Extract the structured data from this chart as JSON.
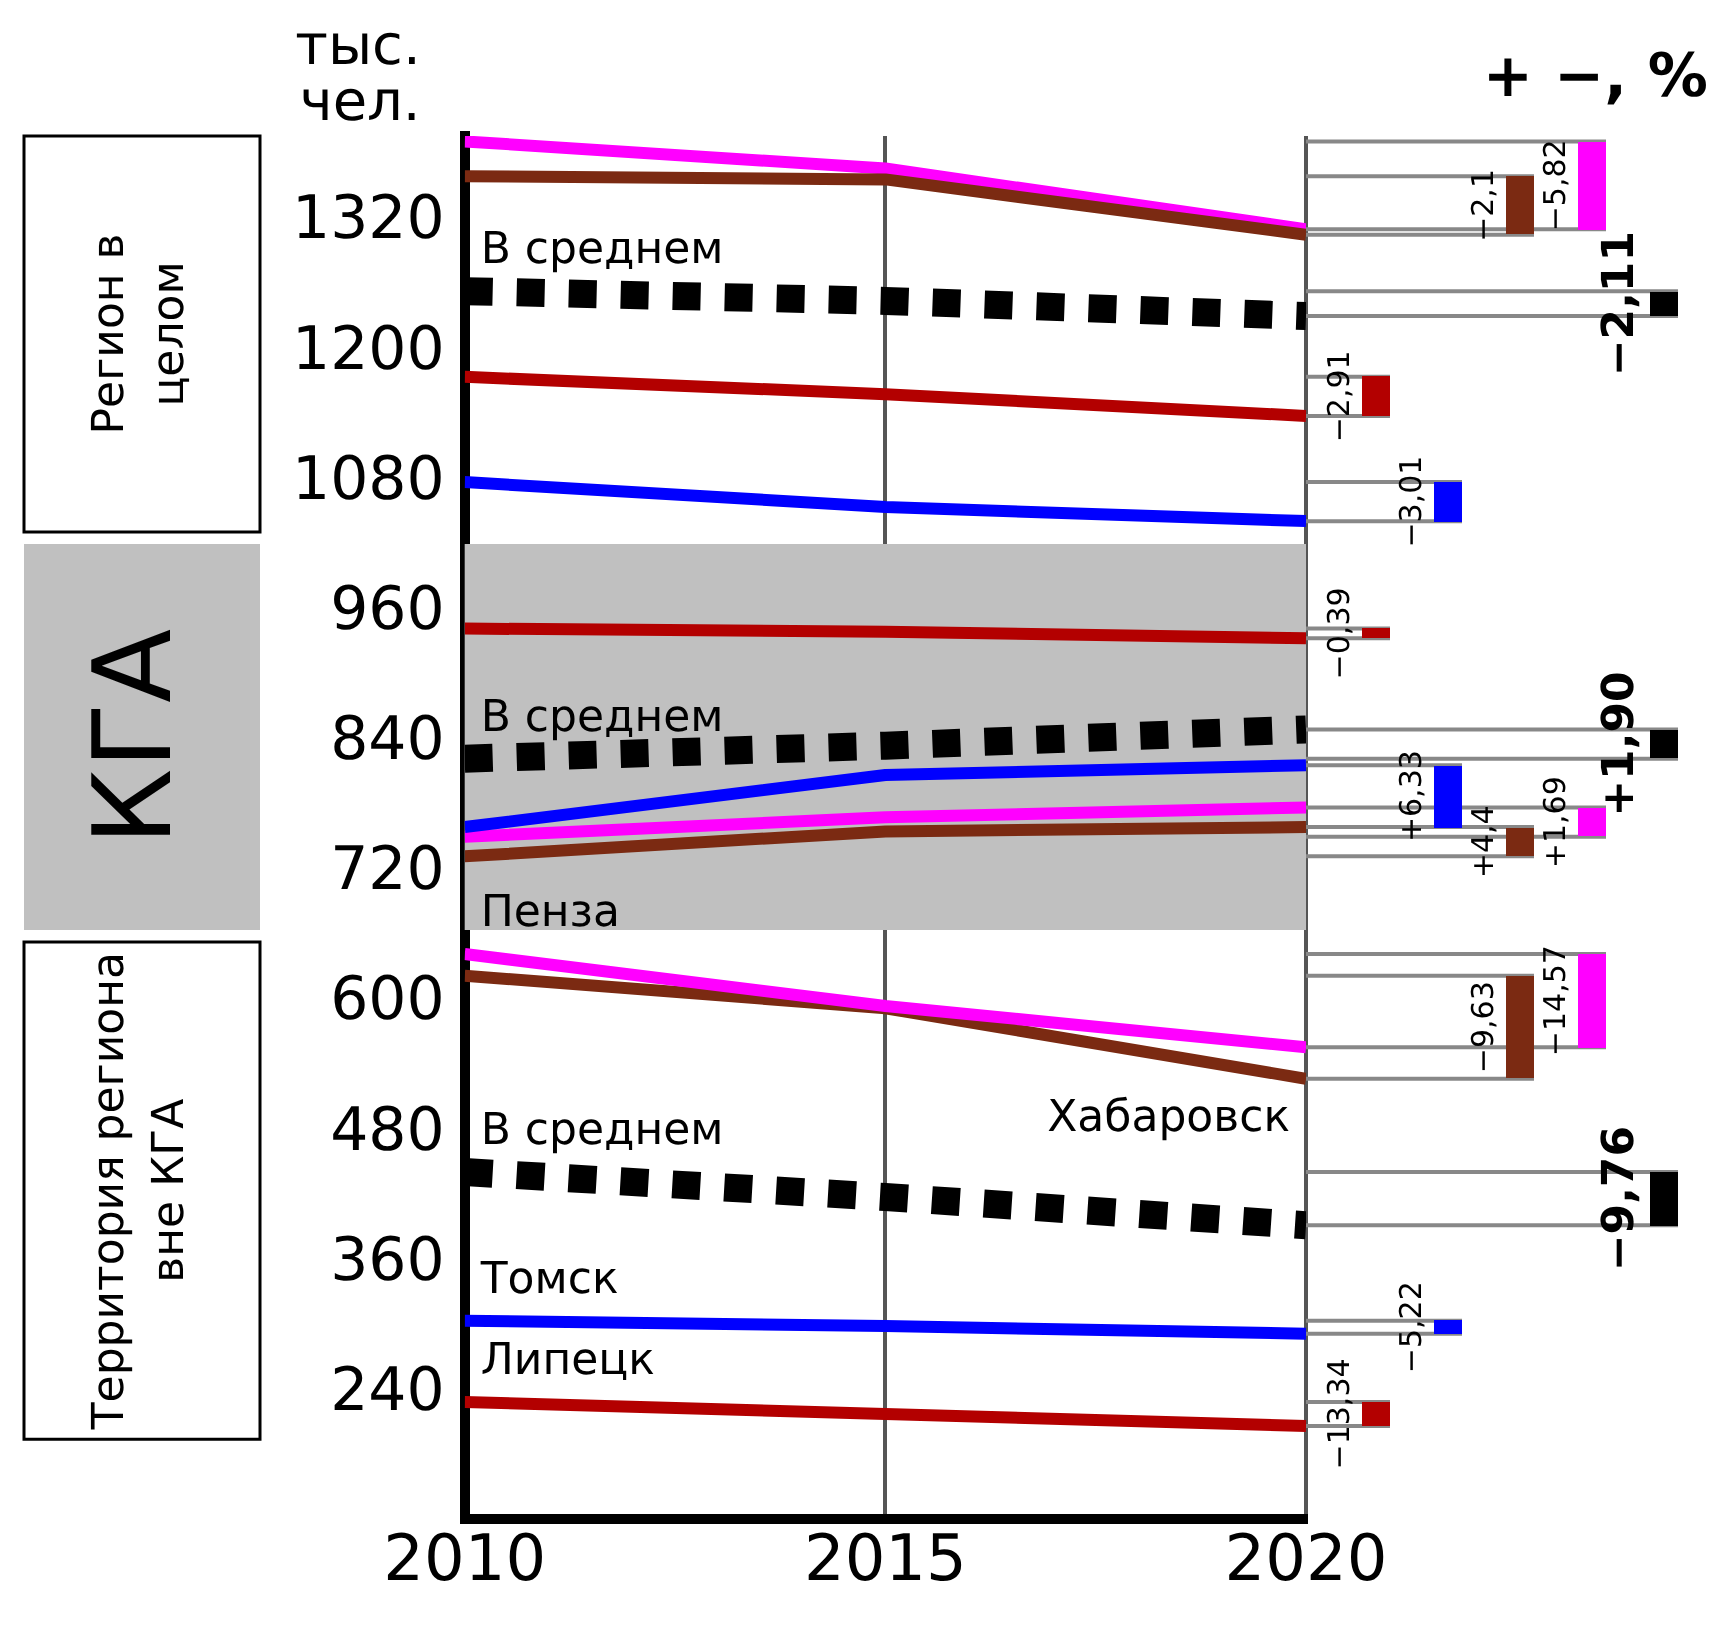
{
  "chart_data": {
    "type": "line",
    "ylabel": "тыс. чел.",
    "x": [
      2010,
      2015,
      2020
    ],
    "xlim": [
      2010,
      2020
    ],
    "xticks": [
      2010,
      2015,
      2020
    ],
    "ylim": [
      125,
      1400
    ],
    "yticks": [
      240,
      360,
      480,
      600,
      720,
      840,
      960,
      1080,
      1200,
      1320
    ],
    "grid": "x",
    "legend": false,
    "annotations": [
      "+ −, %",
      "Регион в целом",
      "Территория региона вне КГА",
      "−2,91",
      "−3,01",
      "−2,1",
      "−5,82",
      "−2,11",
      "−0,39",
      "+6,33",
      "+4,4",
      "+1,69",
      "+1,90",
      "−13,34",
      "−5,22",
      "−14,57",
      "−9,63",
      "−9,76"
    ],
    "bands": [
      {
        "axis": "y",
        "from": 668,
        "to": 1024,
        "label": "КГА",
        "color": "#c0c0c0"
      }
    ],
    "series": [
      {
        "color": "#b30000",
        "values": [
          1178,
          1162,
          1142
        ]
      },
      {
        "color": "#0000ff",
        "values": [
          1081,
          1058,
          1045
        ]
      },
      {
        "color": "#7b2a12",
        "values": [
          1363,
          1360,
          1309
        ]
      },
      {
        "color": "#ff00ff",
        "values": [
          1395,
          1370,
          1314
        ]
      },
      {
        "name": "В среднем",
        "color": "#000000",
        "line_style": "dotted",
        "values": [
          1257,
          1248,
          1234
        ]
      },
      {
        "color": "#b30000",
        "values": [
          946,
          943,
          937
        ]
      },
      {
        "color": "#0000ff",
        "values": [
          763,
          811,
          820
        ]
      },
      {
        "color": "#7b2a12",
        "values": [
          736,
          759,
          763
        ]
      },
      {
        "color": "#ff00ff",
        "values": [
          754,
          772,
          781
        ]
      },
      {
        "name": "В среднем",
        "color": "#000000",
        "line_style": "dotted",
        "values": [
          826,
          838,
          853
        ]
      },
      {
        "name": "Липецк",
        "color": "#b30000",
        "values": [
          233,
          222,
          211
        ]
      },
      {
        "name": "Томск",
        "color": "#0000ff",
        "values": [
          308,
          303,
          296
        ]
      },
      {
        "name": "Пенза",
        "color": "#ff00ff",
        "values": [
          646,
          598,
          560
        ]
      },
      {
        "name": "Хабаровск",
        "color": "#7b2a12",
        "values": [
          626,
          596,
          531
        ]
      },
      {
        "name": "В среднем",
        "color": "#000000",
        "line_style": "dotted",
        "values": [
          445,
          422,
          396
        ]
      }
    ]
  }
}
